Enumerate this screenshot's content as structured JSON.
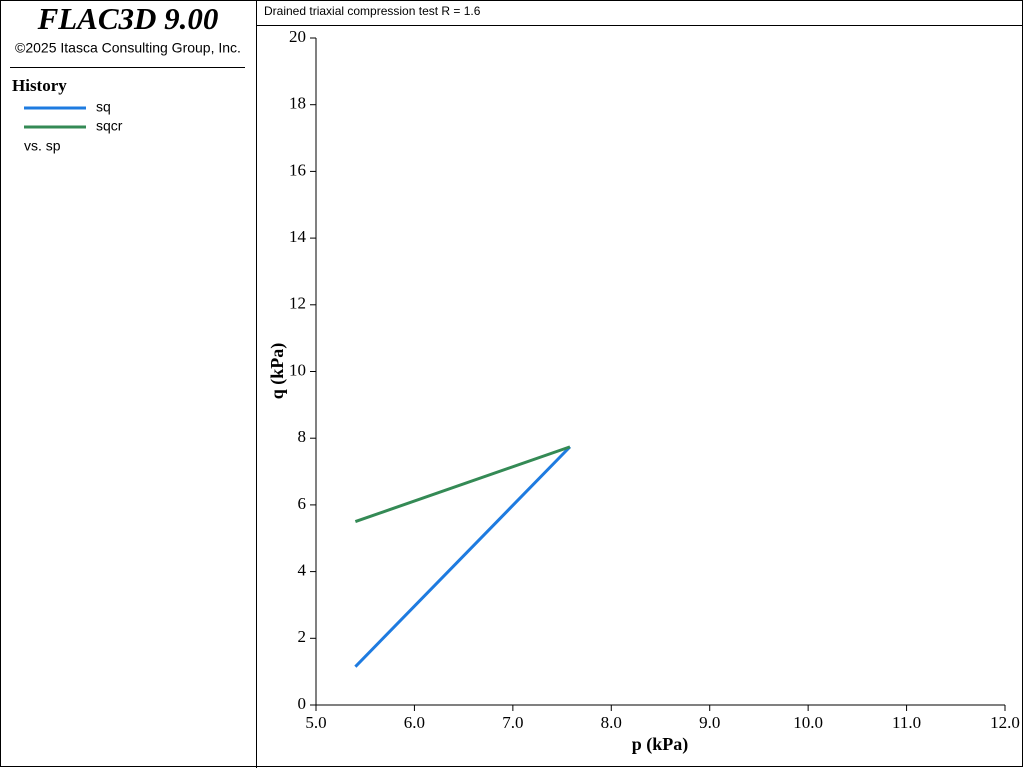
{
  "header": {
    "title": "FLAC3D 9.00",
    "copyright": "©2025 Itasca Consulting Group, Inc."
  },
  "legend_title": "History",
  "x_series_label": "vs. sp",
  "chart_data": {
    "type": "line",
    "title": "Drained triaxial compression test R = 1.6",
    "x_label": "p (kPa)",
    "y_label": "q (kPa)",
    "x": [
      5.4,
      7.58
    ],
    "series": [
      {
        "name": "sq",
        "color": "#1e7be0",
        "values": [
          1.15,
          7.74
        ]
      },
      {
        "name": "sqcr",
        "color": "#348a55",
        "values": [
          5.5,
          7.74
        ]
      }
    ],
    "xlim": [
      5,
      12
    ],
    "xticks": [
      {
        "value": 5,
        "label": "5.0"
      },
      {
        "value": 6,
        "label": "6.0"
      },
      {
        "value": 7,
        "label": "7.0"
      },
      {
        "value": 8,
        "label": "8.0"
      },
      {
        "value": 9,
        "label": "9.0"
      },
      {
        "value": 10,
        "label": "10.0"
      },
      {
        "value": 11,
        "label": "11.0"
      },
      {
        "value": 12,
        "label": "12.0"
      }
    ],
    "ylim": [
      0,
      20
    ],
    "yticks": [
      0,
      2,
      4,
      6,
      8,
      10,
      12,
      14,
      16,
      18,
      20
    ]
  }
}
